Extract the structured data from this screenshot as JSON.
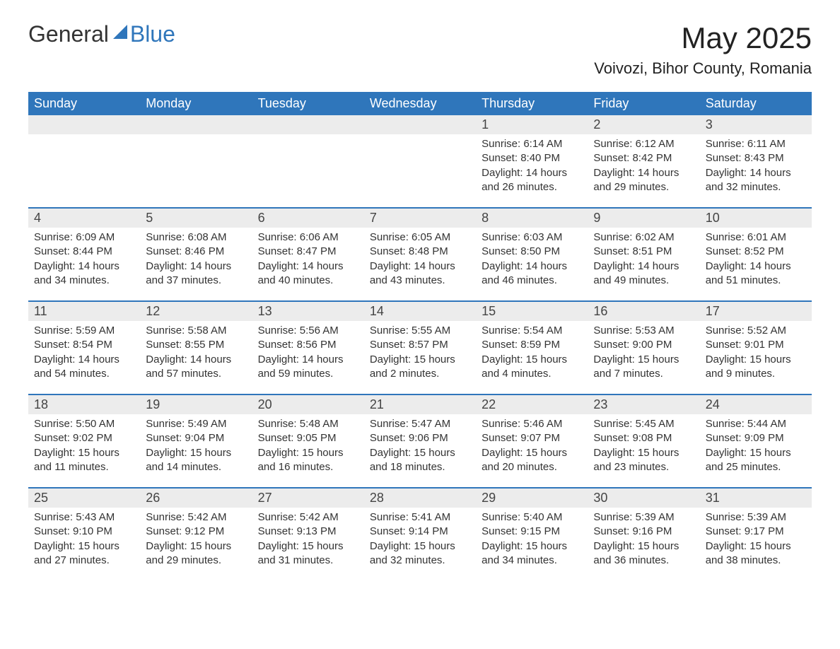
{
  "logo": {
    "text1": "General",
    "text2": "Blue"
  },
  "title": "May 2025",
  "location": "Voivozi, Bihor County, Romania",
  "colors": {
    "header_bg": "#2f76bb",
    "header_text": "#ffffff",
    "strip_bg": "#ececec",
    "strip_border": "#2f76bb",
    "body_text": "#333333",
    "page_bg": "#ffffff"
  },
  "day_names": [
    "Sunday",
    "Monday",
    "Tuesday",
    "Wednesday",
    "Thursday",
    "Friday",
    "Saturday"
  ],
  "weeks": [
    [
      null,
      null,
      null,
      null,
      {
        "d": "1",
        "sunrise": "6:14 AM",
        "sunset": "8:40 PM",
        "daylight": "14 hours and 26 minutes."
      },
      {
        "d": "2",
        "sunrise": "6:12 AM",
        "sunset": "8:42 PM",
        "daylight": "14 hours and 29 minutes."
      },
      {
        "d": "3",
        "sunrise": "6:11 AM",
        "sunset": "8:43 PM",
        "daylight": "14 hours and 32 minutes."
      }
    ],
    [
      {
        "d": "4",
        "sunrise": "6:09 AM",
        "sunset": "8:44 PM",
        "daylight": "14 hours and 34 minutes."
      },
      {
        "d": "5",
        "sunrise": "6:08 AM",
        "sunset": "8:46 PM",
        "daylight": "14 hours and 37 minutes."
      },
      {
        "d": "6",
        "sunrise": "6:06 AM",
        "sunset": "8:47 PM",
        "daylight": "14 hours and 40 minutes."
      },
      {
        "d": "7",
        "sunrise": "6:05 AM",
        "sunset": "8:48 PM",
        "daylight": "14 hours and 43 minutes."
      },
      {
        "d": "8",
        "sunrise": "6:03 AM",
        "sunset": "8:50 PM",
        "daylight": "14 hours and 46 minutes."
      },
      {
        "d": "9",
        "sunrise": "6:02 AM",
        "sunset": "8:51 PM",
        "daylight": "14 hours and 49 minutes."
      },
      {
        "d": "10",
        "sunrise": "6:01 AM",
        "sunset": "8:52 PM",
        "daylight": "14 hours and 51 minutes."
      }
    ],
    [
      {
        "d": "11",
        "sunrise": "5:59 AM",
        "sunset": "8:54 PM",
        "daylight": "14 hours and 54 minutes."
      },
      {
        "d": "12",
        "sunrise": "5:58 AM",
        "sunset": "8:55 PM",
        "daylight": "14 hours and 57 minutes."
      },
      {
        "d": "13",
        "sunrise": "5:56 AM",
        "sunset": "8:56 PM",
        "daylight": "14 hours and 59 minutes."
      },
      {
        "d": "14",
        "sunrise": "5:55 AM",
        "sunset": "8:57 PM",
        "daylight": "15 hours and 2 minutes."
      },
      {
        "d": "15",
        "sunrise": "5:54 AM",
        "sunset": "8:59 PM",
        "daylight": "15 hours and 4 minutes."
      },
      {
        "d": "16",
        "sunrise": "5:53 AM",
        "sunset": "9:00 PM",
        "daylight": "15 hours and 7 minutes."
      },
      {
        "d": "17",
        "sunrise": "5:52 AM",
        "sunset": "9:01 PM",
        "daylight": "15 hours and 9 minutes."
      }
    ],
    [
      {
        "d": "18",
        "sunrise": "5:50 AM",
        "sunset": "9:02 PM",
        "daylight": "15 hours and 11 minutes."
      },
      {
        "d": "19",
        "sunrise": "5:49 AM",
        "sunset": "9:04 PM",
        "daylight": "15 hours and 14 minutes."
      },
      {
        "d": "20",
        "sunrise": "5:48 AM",
        "sunset": "9:05 PM",
        "daylight": "15 hours and 16 minutes."
      },
      {
        "d": "21",
        "sunrise": "5:47 AM",
        "sunset": "9:06 PM",
        "daylight": "15 hours and 18 minutes."
      },
      {
        "d": "22",
        "sunrise": "5:46 AM",
        "sunset": "9:07 PM",
        "daylight": "15 hours and 20 minutes."
      },
      {
        "d": "23",
        "sunrise": "5:45 AM",
        "sunset": "9:08 PM",
        "daylight": "15 hours and 23 minutes."
      },
      {
        "d": "24",
        "sunrise": "5:44 AM",
        "sunset": "9:09 PM",
        "daylight": "15 hours and 25 minutes."
      }
    ],
    [
      {
        "d": "25",
        "sunrise": "5:43 AM",
        "sunset": "9:10 PM",
        "daylight": "15 hours and 27 minutes."
      },
      {
        "d": "26",
        "sunrise": "5:42 AM",
        "sunset": "9:12 PM",
        "daylight": "15 hours and 29 minutes."
      },
      {
        "d": "27",
        "sunrise": "5:42 AM",
        "sunset": "9:13 PM",
        "daylight": "15 hours and 31 minutes."
      },
      {
        "d": "28",
        "sunrise": "5:41 AM",
        "sunset": "9:14 PM",
        "daylight": "15 hours and 32 minutes."
      },
      {
        "d": "29",
        "sunrise": "5:40 AM",
        "sunset": "9:15 PM",
        "daylight": "15 hours and 34 minutes."
      },
      {
        "d": "30",
        "sunrise": "5:39 AM",
        "sunset": "9:16 PM",
        "daylight": "15 hours and 36 minutes."
      },
      {
        "d": "31",
        "sunrise": "5:39 AM",
        "sunset": "9:17 PM",
        "daylight": "15 hours and 38 minutes."
      }
    ]
  ],
  "labels": {
    "sunrise_prefix": "Sunrise: ",
    "sunset_prefix": "Sunset: ",
    "daylight_prefix": "Daylight: "
  }
}
